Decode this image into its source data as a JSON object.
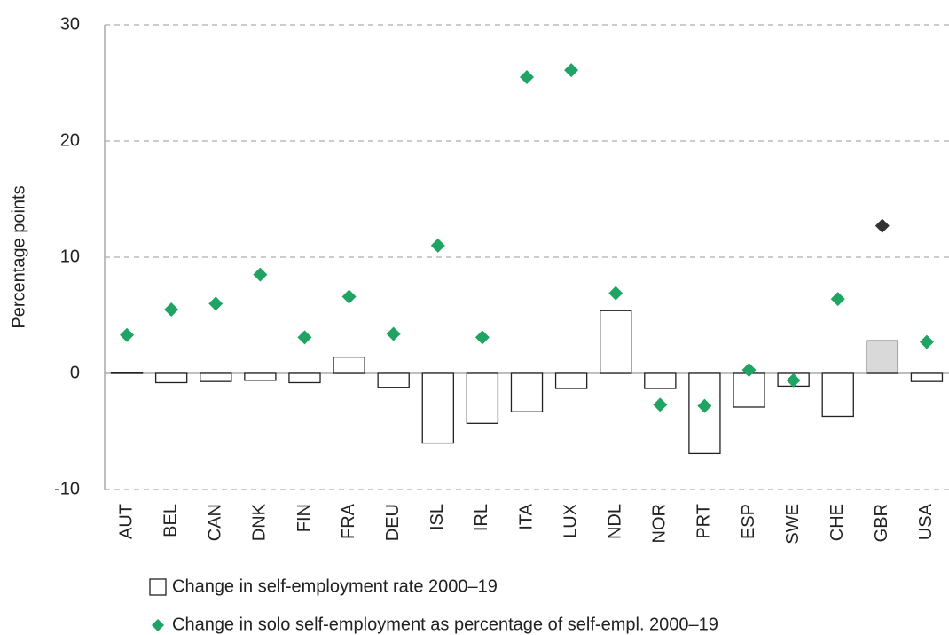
{
  "chart_data": {
    "type": "combo",
    "y_label": "Percentage points",
    "categories": [
      "AUT",
      "BEL",
      "CAN",
      "DNK",
      "FIN",
      "FRA",
      "DEU",
      "ISL",
      "IRL",
      "ITA",
      "LUX",
      "NDL",
      "NOR",
      "PRT",
      "ESP",
      "SWE",
      "CHE",
      "GBR",
      "USA"
    ],
    "series": [
      {
        "name": "Change in self-employment rate 2000–19",
        "type": "bar",
        "color": "#ffffff",
        "colors": [
          "#ffffff",
          "#ffffff",
          "#ffffff",
          "#ffffff",
          "#ffffff",
          "#ffffff",
          "#ffffff",
          "#ffffff",
          "#ffffff",
          "#ffffff",
          "#ffffff",
          "#ffffff",
          "#ffffff",
          "#ffffff",
          "#ffffff",
          "#ffffff",
          "#ffffff",
          "#d9d9d9",
          "#ffffff"
        ],
        "values": [
          0.1,
          -0.8,
          -0.7,
          -0.6,
          -0.8,
          1.4,
          -1.2,
          -6.0,
          -4.3,
          -3.3,
          -1.3,
          5.4,
          -1.3,
          -6.9,
          -2.9,
          -1.1,
          -3.7,
          2.8,
          -0.7
        ]
      },
      {
        "name": "Change in solo self-employment as percentage of self-empl. 2000–19",
        "type": "scatter",
        "color": "#1fa463",
        "colors": [
          "#1fa463",
          "#1fa463",
          "#1fa463",
          "#1fa463",
          "#1fa463",
          "#1fa463",
          "#1fa463",
          "#1fa463",
          "#1fa463",
          "#1fa463",
          "#1fa463",
          "#1fa463",
          "#1fa463",
          "#1fa463",
          "#1fa463",
          "#1fa463",
          "#1fa463",
          "#333333",
          "#1fa463"
        ],
        "values": [
          3.3,
          5.5,
          6.0,
          8.5,
          3.1,
          6.6,
          3.4,
          11.0,
          3.1,
          25.5,
          26.1,
          6.9,
          -2.7,
          -2.8,
          0.3,
          -0.6,
          6.4,
          12.7,
          2.7
        ]
      }
    ],
    "ylim": [
      -10,
      30
    ],
    "yticks": [
      -10,
      0,
      10,
      20,
      30
    ],
    "grid": true
  }
}
